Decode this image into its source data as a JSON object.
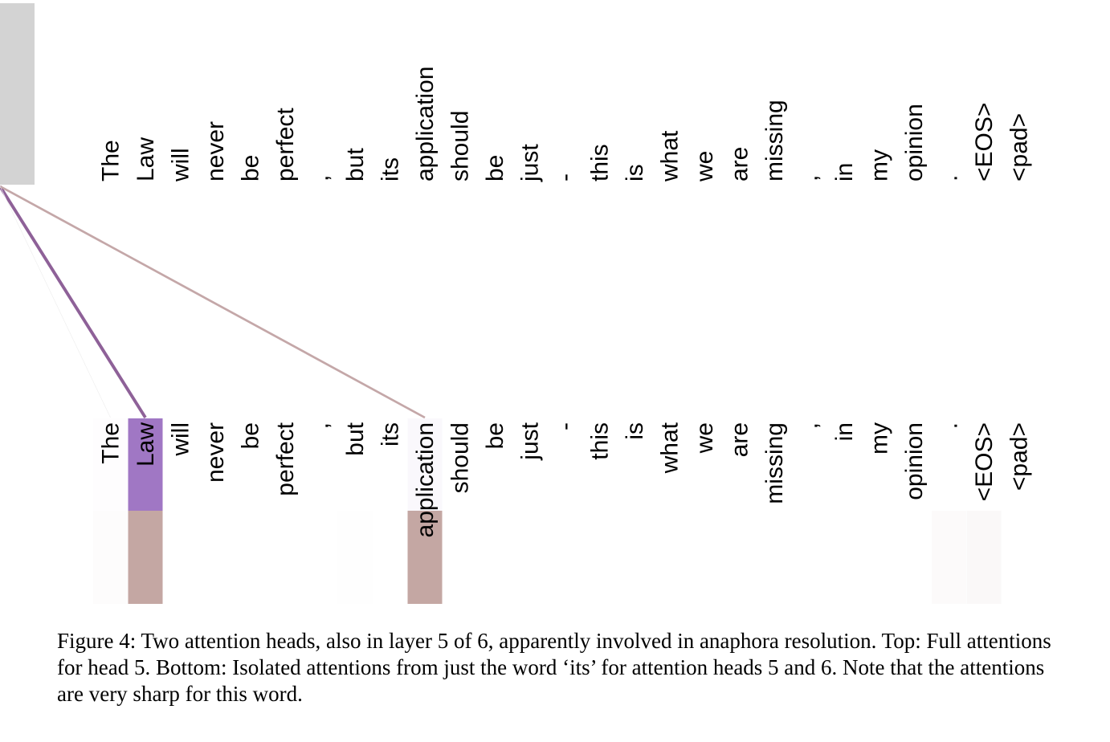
{
  "tokens": [
    "The",
    "Law",
    "will",
    "never",
    "be",
    "perfect",
    ",",
    "but",
    "its",
    "application",
    "should",
    "be",
    "just",
    "-",
    "this",
    "is",
    "what",
    "we",
    "are",
    "missing",
    ",",
    "in",
    "my",
    "opinion",
    ".",
    "<EOS>",
    "<pad>"
  ],
  "query_token_index": 8,
  "attention": {
    "lines": [
      {
        "target": 1,
        "weight": 0.85,
        "color": "#8e6198"
      },
      {
        "target": 9,
        "weight": 0.55,
        "color": "#c4a7a8"
      },
      {
        "target": 0,
        "weight": 0.04,
        "color": "#eeeeee"
      }
    ],
    "head5_weights": [
      0.01,
      0.85,
      0,
      0,
      0,
      0,
      0,
      0,
      0,
      0.05,
      0,
      0,
      0,
      0,
      0,
      0,
      0,
      0,
      0,
      0,
      0,
      0,
      0,
      0,
      0,
      0,
      0
    ],
    "head6_weights": [
      0.03,
      0.55,
      0,
      0,
      0,
      0,
      0,
      0.01,
      0,
      0.8,
      0,
      0,
      0,
      0,
      0,
      0,
      0,
      0,
      0,
      0,
      0,
      0,
      0,
      0,
      0.06,
      0.08,
      0
    ],
    "colors": {
      "query_highlight": "#d3d3d3",
      "head5": "#a077c4",
      "head6": "#c4a7a3"
    }
  },
  "caption": "Figure 4: Two attention heads, also in layer 5 of 6, apparently involved in anaphora resolution. Top: Full attentions for head 5. Bottom: Isolated attentions from just the word ‘its’ for attention heads 5 and 6. Note that the attentions are very sharp for this word."
}
